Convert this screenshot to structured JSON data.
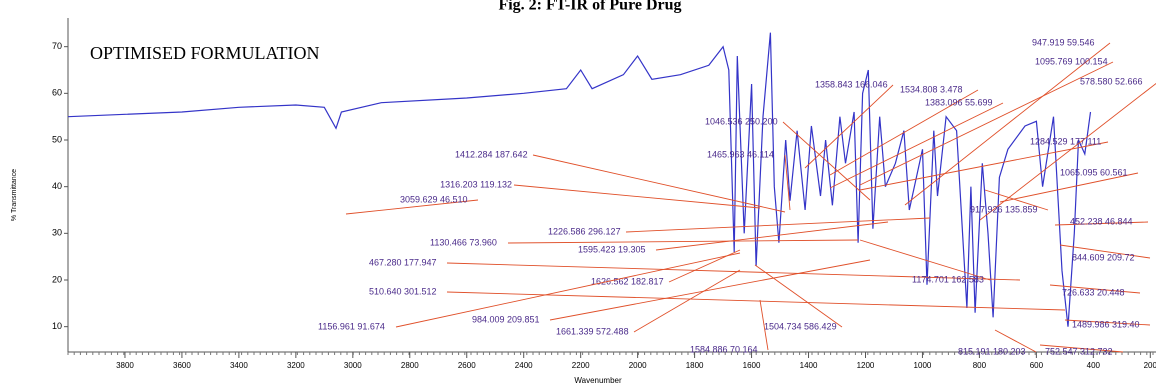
{
  "chart_data": {
    "type": "line",
    "title": "Fig. 2: FT-IR of Pure Drug",
    "legend_label": "OPTIMISED FORMULATION",
    "xlabel": "Wavenumber",
    "ylabel": "% Transmittance",
    "xlim": [
      4000,
      180
    ],
    "xticks": [
      3800,
      3600,
      3400,
      3200,
      3000,
      2800,
      2600,
      2400,
      2200,
      2000,
      1800,
      1600,
      1400,
      1200,
      1000,
      800,
      600,
      400,
      200
    ],
    "ylim": [
      5,
      74
    ],
    "yticks": [
      10,
      20,
      30,
      40,
      50,
      60,
      70
    ],
    "color": "#3434c8",
    "x": [
      4000,
      3800,
      3600,
      3400,
      3200,
      3100,
      3059,
      3040,
      2900,
      2600,
      2400,
      2250,
      2200,
      2160,
      2050,
      2000,
      1950,
      1850,
      1750,
      1700,
      1680,
      1661,
      1650,
      1626,
      1600,
      1584,
      1560,
      1534,
      1520,
      1504,
      1480,
      1465,
      1440,
      1412,
      1390,
      1358,
      1340,
      1316,
      1290,
      1270,
      1240,
      1226,
      1210,
      1190,
      1174,
      1150,
      1130,
      1095,
      1065,
      1046,
      1000,
      984,
      960,
      947,
      917,
      880,
      844,
      830,
      815,
      790,
      770,
      752,
      730,
      700,
      640,
      600,
      578,
      540,
      510,
      489,
      467,
      452,
      430,
      410
    ],
    "y": [
      55,
      55.5,
      56,
      57,
      57.5,
      57,
      52.5,
      56,
      58,
      59,
      60,
      61,
      65,
      61,
      64,
      68,
      63,
      64,
      66,
      70,
      65,
      26,
      68,
      30,
      62,
      23,
      55,
      73,
      40,
      28,
      50,
      37,
      52,
      35,
      53,
      38,
      50,
      36,
      55,
      45,
      56,
      28,
      60,
      65,
      31,
      55,
      40,
      45,
      52,
      35,
      48,
      19,
      52,
      38,
      55,
      52,
      14,
      40,
      13,
      45,
      30,
      12,
      42,
      48,
      53,
      54,
      40,
      55,
      22,
      10,
      30,
      50,
      47,
      56
    ],
    "annotation_color": "#4a2a8a",
    "leader_color": "#e0502a",
    "annotations": [
      "3059.629 46.510",
      "1412.284 187.642",
      "1046.536 250.200",
      "1465.963 46.114",
      "1358.843 166.046",
      "1534.808 3.478",
      "947.919 59.546",
      "1095.769 100.154",
      "578.580 52.666",
      "1383.096 55.699",
      "1284.529 177.111",
      "1316.203 119.132",
      "1065.095 60.561",
      "1226.586 296.127",
      "1130.466 73.960",
      "1595.423 19.305",
      "917.926 135.859",
      "452.238 46.844",
      "467.280 177.947",
      "1626.562 182.817",
      "1174.701 162.583",
      "844.609 209.72",
      "510.640 301.512",
      "984.009 209.851",
      "726.633 20.448",
      "1156.961 91.674",
      "1661.339 572.488",
      "1504.734 586.429",
      "1489.986 319.40",
      "1584.886 70.164",
      "815.191 180.203",
      "752.547 312.732"
    ]
  }
}
